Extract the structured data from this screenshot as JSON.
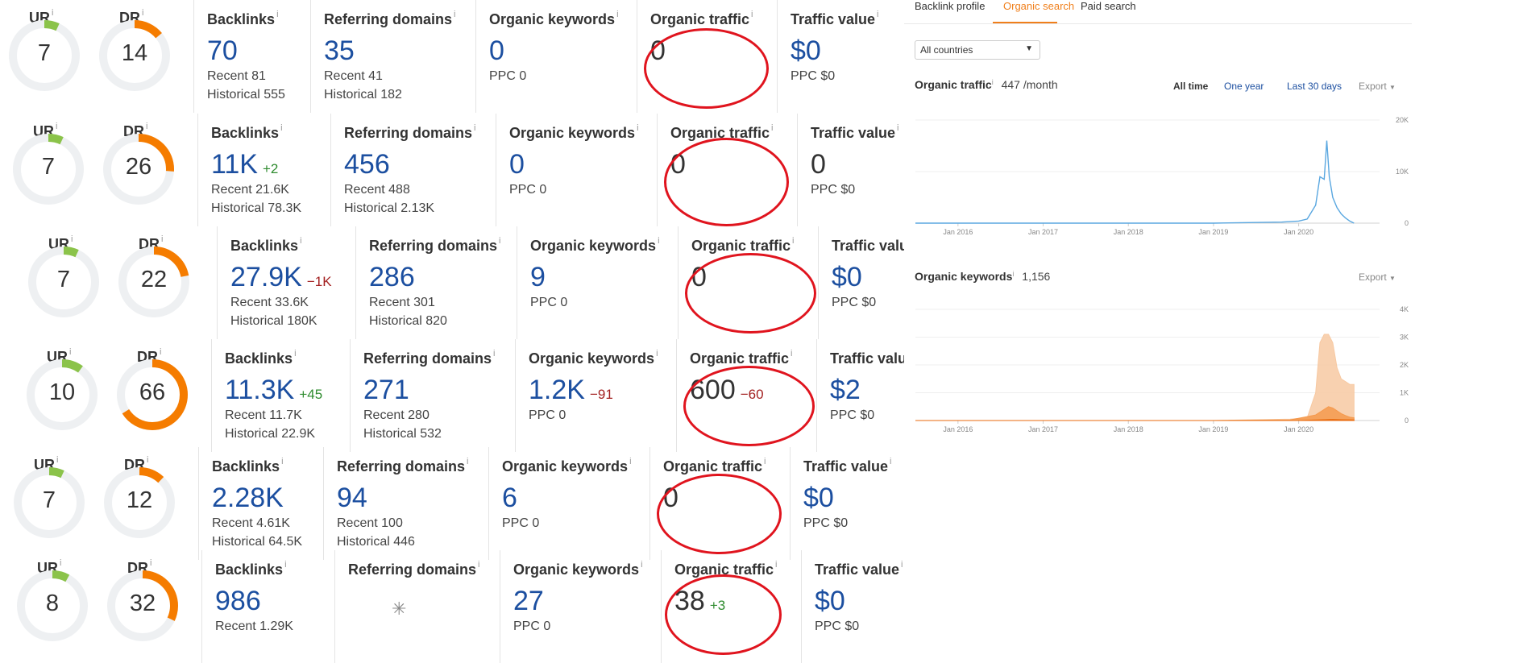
{
  "rows": [
    {
      "ur": 7,
      "dr": 14,
      "backlinks": {
        "title": "Backlinks",
        "value": "70",
        "delta": "",
        "dir": "",
        "recent": "Recent 81",
        "historical": "Historical 555"
      },
      "domains": {
        "title": "Referring domains",
        "value": "35",
        "loading": false,
        "recent": "Recent 41",
        "historical": "Historical 182"
      },
      "keywords": {
        "title": "Organic keywords",
        "value": "0",
        "delta": "",
        "dir": "",
        "ppc": "PPC 0"
      },
      "traffic": {
        "title": "Organic traffic",
        "value": "0",
        "delta": "",
        "dir": ""
      },
      "tvalue": {
        "title": "Traffic value",
        "value": "$0",
        "dark": false,
        "ppc": "PPC $0"
      }
    },
    {
      "ur": 7,
      "dr": 26,
      "backlinks": {
        "title": "Backlinks",
        "value": "11K",
        "delta": "+2",
        "dir": "up",
        "recent": "Recent 21.6K",
        "historical": "Historical 78.3K"
      },
      "domains": {
        "title": "Referring domains",
        "value": "456",
        "loading": false,
        "recent": "Recent 488",
        "historical": "Historical 2.13K"
      },
      "keywords": {
        "title": "Organic keywords",
        "value": "0",
        "delta": "",
        "dir": "",
        "ppc": "PPC 0"
      },
      "traffic": {
        "title": "Organic traffic",
        "value": "0",
        "delta": "",
        "dir": ""
      },
      "tvalue": {
        "title": "Traffic value",
        "value": "0",
        "dark": true,
        "ppc": "PPC $0"
      }
    },
    {
      "ur": 7,
      "dr": 22,
      "backlinks": {
        "title": "Backlinks",
        "value": "27.9K",
        "delta": "−1K",
        "dir": "down",
        "recent": "Recent 33.6K",
        "historical": "Historical 180K"
      },
      "domains": {
        "title": "Referring domains",
        "value": "286",
        "loading": false,
        "recent": "Recent 301",
        "historical": "Historical 820"
      },
      "keywords": {
        "title": "Organic keywords",
        "value": "9",
        "delta": "",
        "dir": "",
        "ppc": "PPC 0"
      },
      "traffic": {
        "title": "Organic traffic",
        "value": "0",
        "delta": "",
        "dir": ""
      },
      "tvalue": {
        "title": "Traffic value",
        "value": "$0",
        "dark": false,
        "ppc": "PPC $0"
      }
    },
    {
      "ur": 10,
      "dr": 66,
      "backlinks": {
        "title": "Backlinks",
        "value": "11.3K",
        "delta": "+45",
        "dir": "up",
        "recent": "Recent 11.7K",
        "historical": "Historical 22.9K"
      },
      "domains": {
        "title": "Referring domains",
        "value": "271",
        "loading": false,
        "recent": "Recent 280",
        "historical": "Historical 532"
      },
      "keywords": {
        "title": "Organic keywords",
        "value": "1.2K",
        "delta": "−91",
        "dir": "down",
        "ppc": "PPC 0"
      },
      "traffic": {
        "title": "Organic traffic",
        "value": "600",
        "delta": "−60",
        "dir": "down"
      },
      "tvalue": {
        "title": "Traffic value",
        "value": "$2",
        "dark": false,
        "ppc": "PPC $0"
      }
    },
    {
      "ur": 7,
      "dr": 12,
      "backlinks": {
        "title": "Backlinks",
        "value": "2.28K",
        "delta": "",
        "dir": "",
        "recent": "Recent 4.61K",
        "historical": "Historical 64.5K"
      },
      "domains": {
        "title": "Referring domains",
        "value": "94",
        "loading": false,
        "recent": "Recent 100",
        "historical": "Historical 446"
      },
      "keywords": {
        "title": "Organic keywords",
        "value": "6",
        "delta": "",
        "dir": "",
        "ppc": "PPC 0"
      },
      "traffic": {
        "title": "Organic traffic",
        "value": "0",
        "delta": "",
        "dir": ""
      },
      "tvalue": {
        "title": "Traffic value",
        "value": "$0",
        "dark": false,
        "ppc": "PPC $0"
      }
    },
    {
      "ur": 8,
      "dr": 32,
      "backlinks": {
        "title": "Backlinks",
        "value": "986",
        "delta": "",
        "dir": "",
        "recent": "Recent 1.29K",
        "historical": ""
      },
      "domains": {
        "title": "Referring domains",
        "value": "",
        "loading": true,
        "recent": "",
        "historical": ""
      },
      "keywords": {
        "title": "Organic keywords",
        "value": "27",
        "delta": "",
        "dir": "",
        "ppc": "PPC 0"
      },
      "traffic": {
        "title": "Organic traffic",
        "value": "38",
        "delta": "+3",
        "dir": "up"
      },
      "tvalue": {
        "title": "Traffic value",
        "value": "$0",
        "dark": false,
        "ppc": "PPC $0"
      }
    }
  ],
  "labels": {
    "ur": "UR",
    "dr": "DR",
    "info": "i"
  },
  "colors": {
    "ur_fill": "#8bc34a",
    "dr_fill": "#f57c00",
    "track": "#eef0f2",
    "value_blue": "#1c4fa0",
    "annotation": "#e0141e"
  },
  "panel": {
    "tabs": [
      "Backlink profile",
      "Organic search",
      "Paid search"
    ],
    "active_tab": "Organic search",
    "country": "All countries",
    "traffic_title": "Organic traffic",
    "traffic_value": "447 /month",
    "ranges": [
      "All time",
      "One year",
      "Last 30 days"
    ],
    "selected_range": "All time",
    "export": "Export",
    "keywords_title": "Organic keywords",
    "keywords_value": "1,156"
  },
  "chart_data": [
    {
      "type": "line",
      "title": "Organic traffic",
      "x_ticks": [
        "Jan 2016",
        "Jan 2017",
        "Jan 2018",
        "Jan 2019",
        "Jan 2020"
      ],
      "y_ticks": [
        "20K",
        "10K",
        "0"
      ],
      "ylim": [
        0,
        20000
      ],
      "series": [
        {
          "color": "#5aa7e0",
          "x": [
            2015.5,
            2016.0,
            2017.0,
            2018.0,
            2019.0,
            2019.8,
            2020.0,
            2020.1,
            2020.2,
            2020.25,
            2020.3,
            2020.33,
            2020.36,
            2020.4,
            2020.45,
            2020.5,
            2020.55,
            2020.6,
            2020.65
          ],
          "y": [
            0,
            0,
            0,
            0,
            0,
            200,
            400,
            800,
            3500,
            9000,
            8500,
            16000,
            9000,
            5000,
            3000,
            1800,
            1000,
            400,
            0
          ]
        }
      ]
    },
    {
      "type": "area",
      "title": "Organic keywords",
      "x_ticks": [
        "Jan 2016",
        "Jan 2017",
        "Jan 2018",
        "Jan 2019",
        "Jan 2020"
      ],
      "y_ticks": [
        "4K",
        "3K",
        "2K",
        "1K",
        "0"
      ],
      "ylim": [
        0,
        4000
      ],
      "series": [
        {
          "color": "#f7c9a2",
          "x": [
            2015.5,
            2016.0,
            2017.0,
            2018.0,
            2019.0,
            2019.9,
            2020.1,
            2020.2,
            2020.25,
            2020.3,
            2020.35,
            2020.4,
            2020.45,
            2020.5,
            2020.55,
            2020.6,
            2020.65
          ],
          "y": [
            0,
            0,
            0,
            0,
            0,
            50,
            100,
            1000,
            2800,
            3100,
            3100,
            2800,
            1900,
            1500,
            1400,
            1300,
            1300
          ]
        },
        {
          "color": "#f59a4e",
          "x": [
            2015.5,
            2019.0,
            2019.9,
            2020.2,
            2020.3,
            2020.35,
            2020.4,
            2020.45,
            2020.5,
            2020.55,
            2020.6,
            2020.65
          ],
          "y": [
            0,
            0,
            20,
            200,
            400,
            500,
            450,
            350,
            250,
            180,
            120,
            100
          ]
        },
        {
          "color": "#e8690c",
          "x": [
            2015.5,
            2016.0,
            2019.0,
            2020.0,
            2020.3,
            2020.4,
            2020.5,
            2020.65
          ],
          "y": [
            0,
            0,
            0,
            0,
            30,
            40,
            30,
            20
          ]
        }
      ]
    }
  ]
}
